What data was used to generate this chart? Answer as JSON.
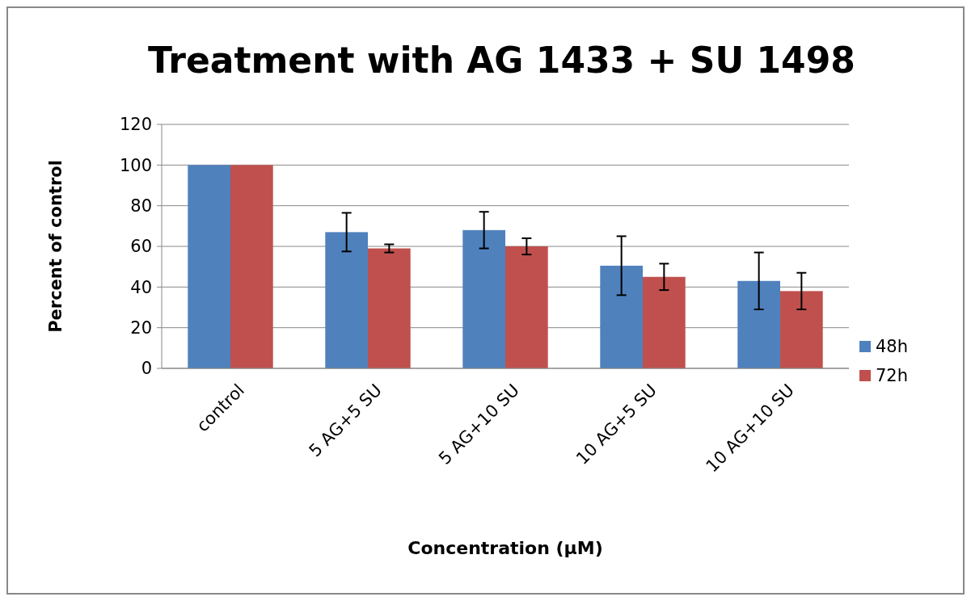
{
  "chart_data": {
    "type": "bar",
    "title": "Treatment with AG 1433 + SU 1498",
    "xlabel": "Concentration (µM)",
    "ylabel": "Percent of control",
    "categories": [
      "control",
      "5 AG+5 SU",
      "5 AG+10 SU",
      "10 AG+5 SU",
      "10 AG+10 SU"
    ],
    "series": [
      {
        "name": "48h",
        "color": "#4f81bd",
        "values": [
          100,
          67,
          68,
          50.5,
          43
        ],
        "errors": [
          null,
          9.5,
          9,
          14.5,
          14
        ]
      },
      {
        "name": "72h",
        "color": "#c0504d",
        "values": [
          100,
          59,
          60,
          45,
          38
        ],
        "errors": [
          null,
          2,
          4,
          6.5,
          9
        ]
      }
    ],
    "ylim": [
      0,
      120
    ],
    "yticks": [
      0,
      20,
      40,
      60,
      80,
      100,
      120
    ],
    "grid": "y",
    "legend": "right"
  }
}
